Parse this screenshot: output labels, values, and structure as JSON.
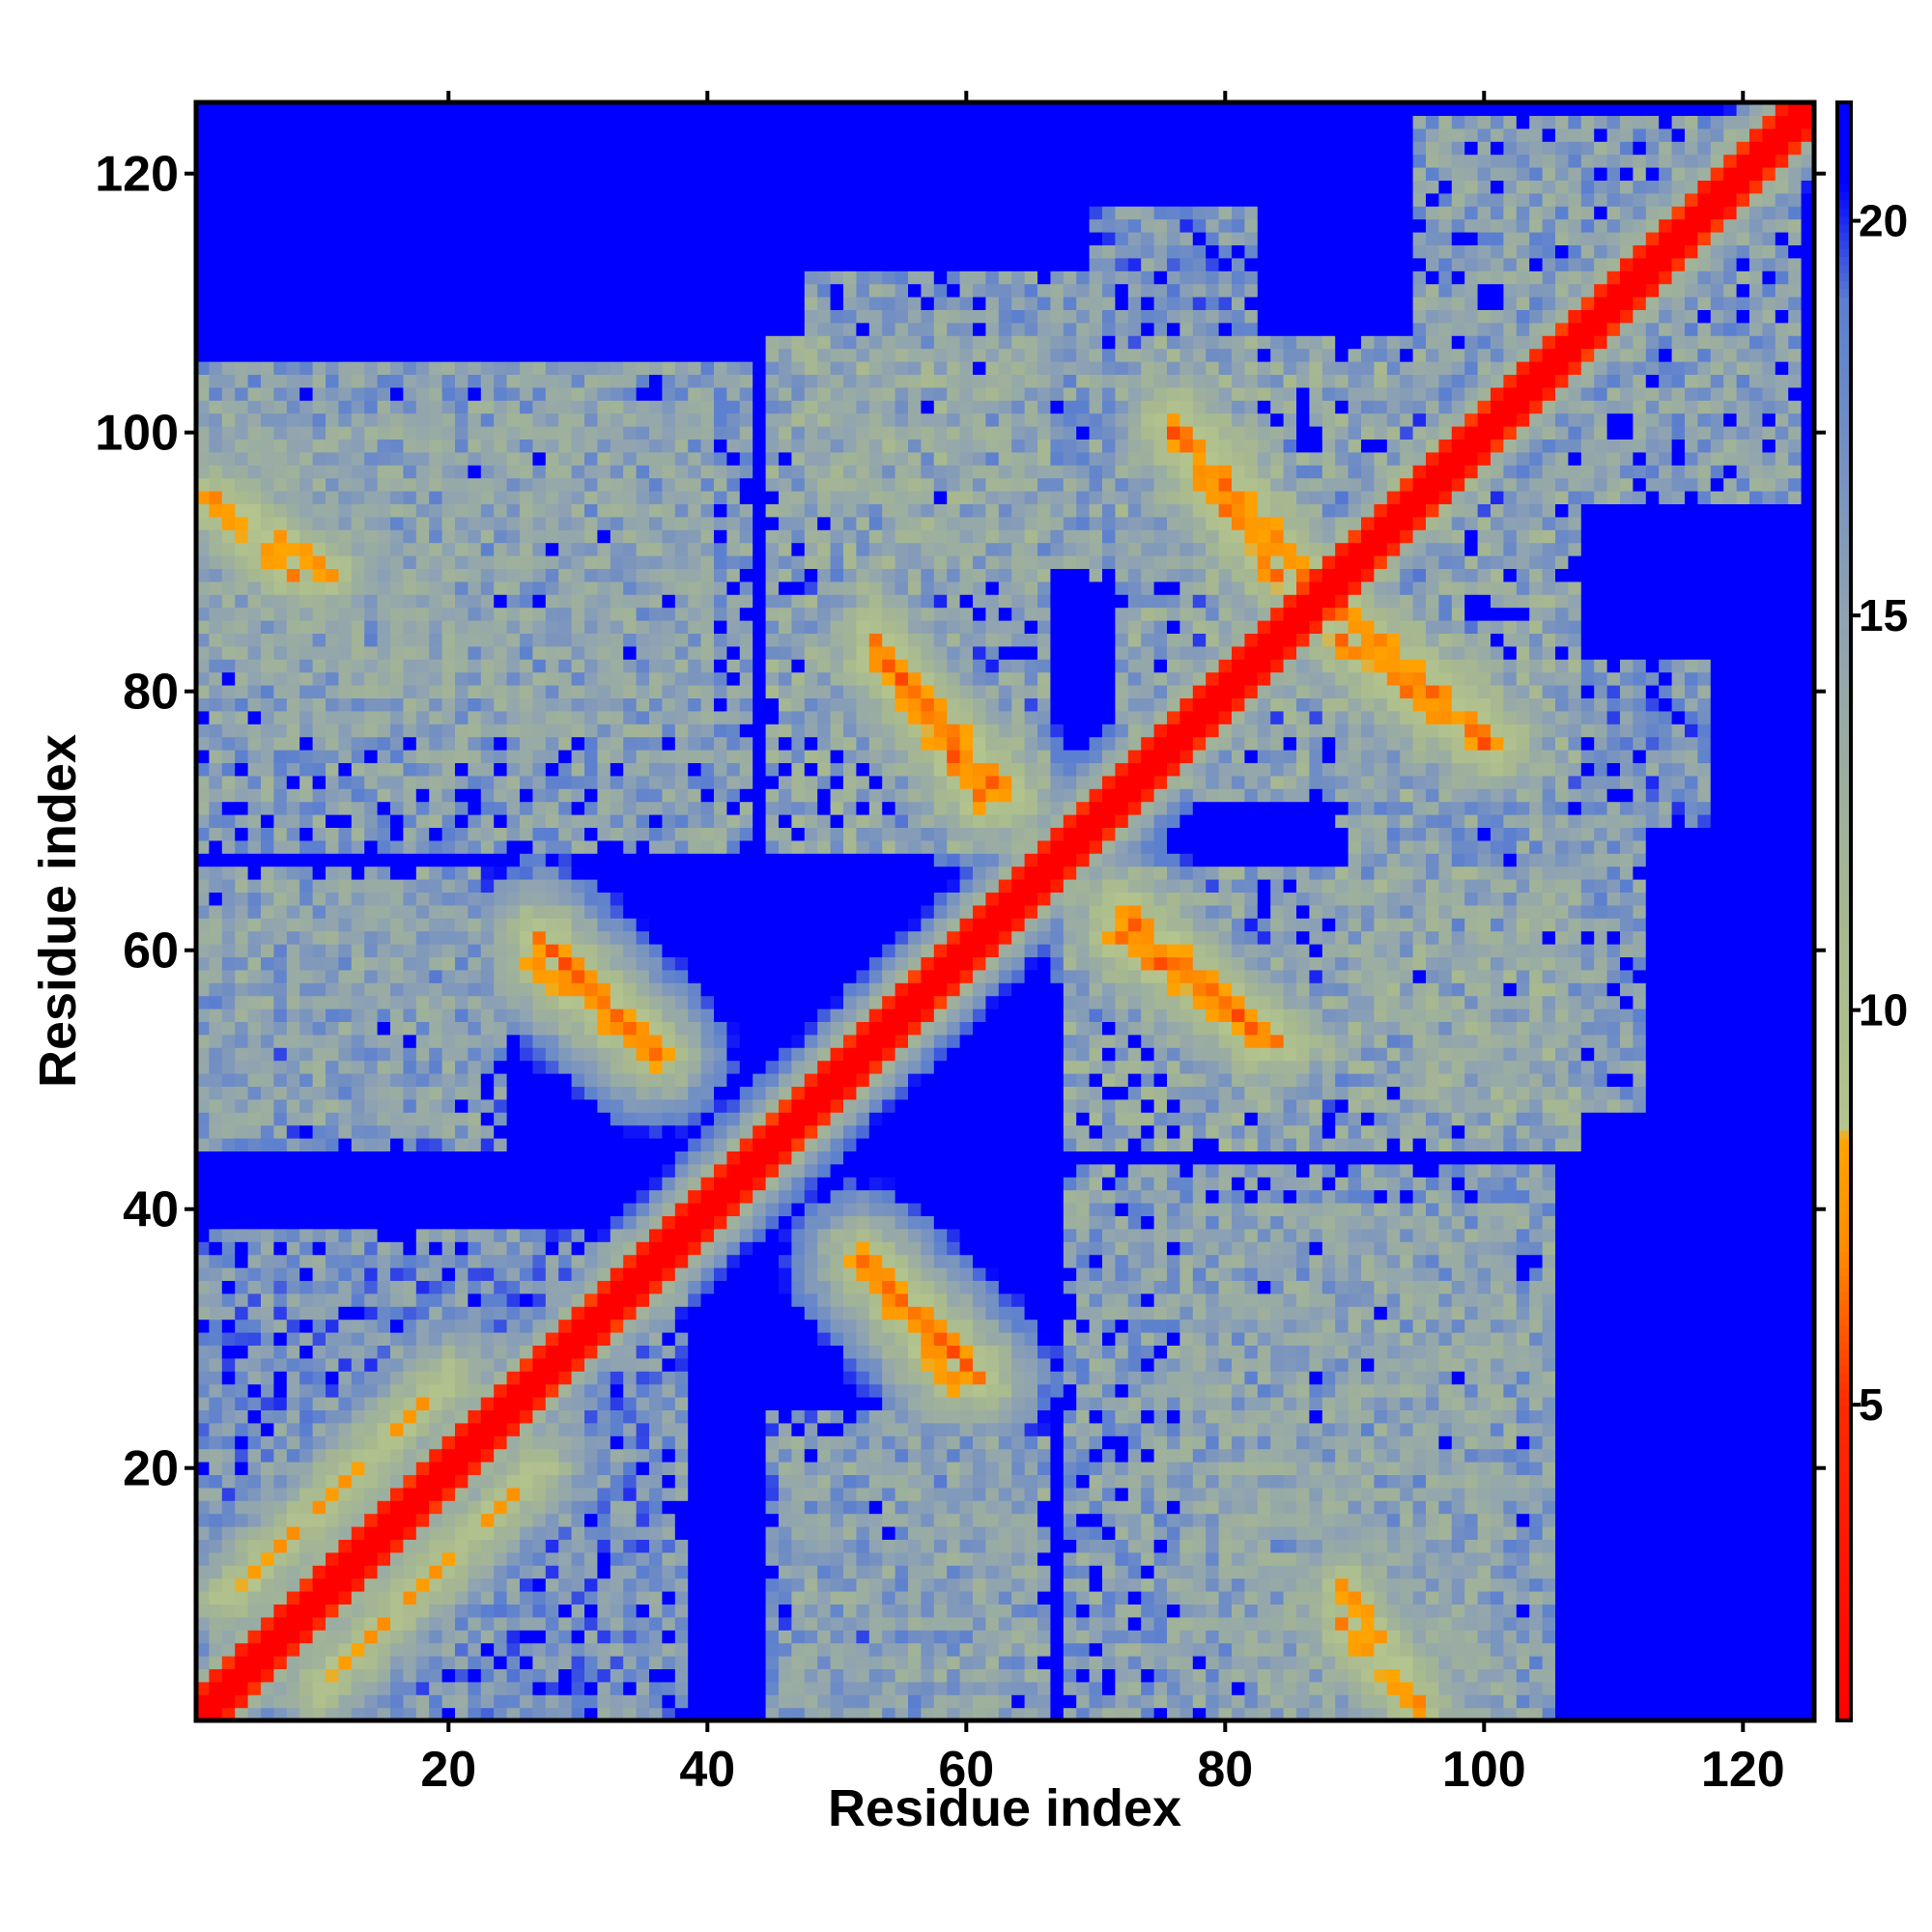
{
  "chart_data": {
    "type": "heatmap",
    "title": "",
    "xlabel": "Residue index",
    "ylabel": "Residue index",
    "n_residues": 125,
    "xlim": [
      1,
      125
    ],
    "ylim": [
      1,
      125
    ],
    "x_ticks": [
      20,
      40,
      60,
      80,
      100,
      120
    ],
    "y_ticks": [
      20,
      40,
      60,
      80,
      100,
      120
    ],
    "colorbar": {
      "ticks": [
        5,
        10,
        15,
        20
      ],
      "range": [
        1,
        21.5
      ],
      "colors": [
        {
          "value": 1,
          "color": "#ff0000"
        },
        {
          "value": 5,
          "color": "#ff2a00"
        },
        {
          "value": 7,
          "color": "#ff8c00"
        },
        {
          "value": 8.4,
          "color": "#ffa500"
        },
        {
          "value": 8.5,
          "color": "#b4c48e"
        },
        {
          "value": 11,
          "color": "#a8b98f"
        },
        {
          "value": 15,
          "color": "#8fa3b2"
        },
        {
          "value": 19,
          "color": "#5b7fd0"
        },
        {
          "value": 20.5,
          "color": "#0000ff"
        }
      ],
      "saturated_color": "#0000ff"
    },
    "diagonal": {
      "value_on_diagonal": 1,
      "width_residues": 2
    },
    "contact_bands": [
      {
        "orientation": "anti",
        "from": [
          27,
          61
        ],
        "to": [
          36,
          52
        ],
        "min_distance": 5.5
      },
      {
        "orientation": "anti",
        "from": [
          53,
          35
        ],
        "to": [
          59,
          27
        ],
        "min_distance": 5.5
      },
      {
        "orientation": "anti",
        "from": [
          53,
          84
        ],
        "to": [
          61,
          72
        ],
        "min_distance": 5.5
      },
      {
        "orientation": "anti",
        "from": [
          72,
          63
        ],
        "to": [
          83,
          53
        ],
        "min_distance": 5.5
      },
      {
        "orientation": "anti",
        "from": [
          76,
          101
        ],
        "to": [
          86,
          89
        ],
        "min_distance": 5.5
      },
      {
        "orientation": "anti",
        "from": [
          89,
          84
        ],
        "to": [
          100,
          76
        ],
        "min_distance": 5.5
      },
      {
        "orientation": "anti",
        "from": [
          2,
          95
        ],
        "to": [
          11,
          89
        ],
        "min_distance": 6.5
      },
      {
        "orientation": "anti",
        "from": [
          89,
          8
        ],
        "to": [
          95,
          1
        ],
        "min_distance": 6.5
      },
      {
        "orientation": "parallel",
        "from": [
          3,
          10
        ],
        "to": [
          20,
          27
        ],
        "min_distance": 7
      }
    ],
    "halo_regions": [
      {
        "x": [
          1,
          40
        ],
        "y": [
          77,
          102
        ],
        "level": 12
      },
      {
        "x": [
          1,
          22
        ],
        "y": [
          46,
          66
        ],
        "level": 12
      },
      {
        "x": [
          1,
          33
        ],
        "y": [
          1,
          38
        ],
        "level": 13
      },
      {
        "x": [
          45,
          66
        ],
        "y": [
          68,
          107
        ],
        "level": 11
      },
      {
        "x": [
          72,
          96
        ],
        "y": [
          72,
          107
        ],
        "level": 11
      },
      {
        "x": [
          89,
          117
        ],
        "y": [
          70,
          82
        ],
        "level": 13
      },
      {
        "x": [
          90,
          112
        ],
        "y": [
          48,
          70
        ],
        "level": 12
      },
      {
        "x": [
          45,
          65
        ],
        "y": [
          1,
          24
        ],
        "level": 13
      },
      {
        "x": [
          68,
          105
        ],
        "y": [
          1,
          43
        ],
        "level": 12
      },
      {
        "x": [
          95,
          124
        ],
        "y": [
          95,
          124
        ],
        "level": 12
      }
    ]
  }
}
